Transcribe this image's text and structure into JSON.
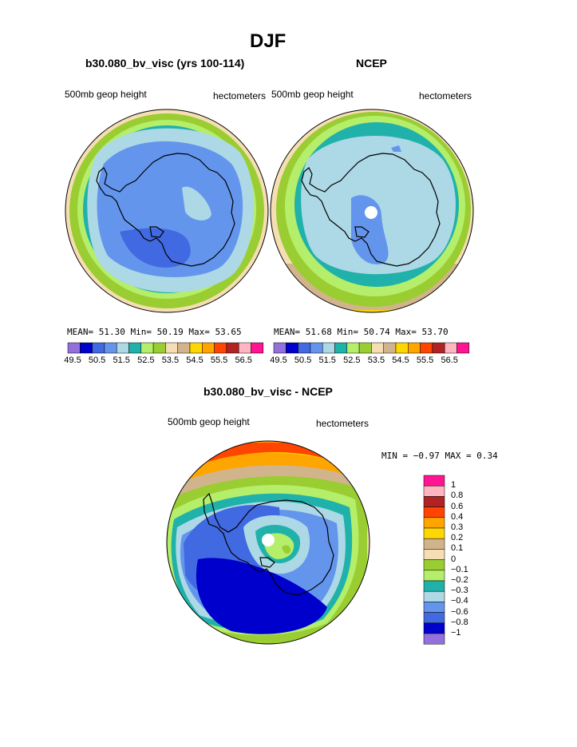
{
  "figure": {
    "title": "DJF"
  },
  "chart_data": [
    {
      "type": "polar-contour-map",
      "title": "b30.080_bv_visc (yrs 100-114)",
      "left_label": "500mb geop height",
      "right_label": "hectometers",
      "stats": {
        "mean_label": "MEAN=",
        "mean": "51.30",
        "min_label": "Min=",
        "min": "50.19",
        "max_label": "Max=",
        "max": "53.65"
      },
      "colorbar_labels": [
        "49.5",
        "50.5",
        "51.5",
        "52.5",
        "53.5",
        "54.5",
        "55.5",
        "56.5"
      ],
      "colors": [
        "#9370db",
        "#0000cd",
        "#4169e1",
        "#6495ed",
        "#add8e6",
        "#20b2aa",
        "#b4ee6a",
        "#9acd32",
        "#f5deb3",
        "#d2b48c",
        "#ffd700",
        "#ffa500",
        "#ff4500",
        "#b22222",
        "#ffb6c1",
        "#ff1493"
      ],
      "field_levels": [
        51.2,
        51.2,
        51.8,
        52.5,
        53.0,
        53.4,
        53.6
      ]
    },
    {
      "type": "polar-contour-map",
      "title": "NCEP",
      "left_label": "500mb geop height",
      "right_label": "hectometers",
      "stats": {
        "mean_label": "MEAN=",
        "mean": "51.68",
        "min_label": "Min=",
        "min": "50.74",
        "max_label": "Max=",
        "max": "53.70"
      },
      "colorbar_labels": [
        "49.5",
        "50.5",
        "51.5",
        "52.5",
        "53.5",
        "54.5",
        "55.5",
        "56.5"
      ],
      "colors": [
        "#9370db",
        "#0000cd",
        "#4169e1",
        "#6495ed",
        "#add8e6",
        "#20b2aa",
        "#b4ee6a",
        "#9acd32",
        "#f5deb3",
        "#d2b48c",
        "#ffd700",
        "#ffa500",
        "#ff4500",
        "#b22222",
        "#ffb6c1",
        "#ff1493"
      ],
      "field_levels": [
        51.6,
        51.8,
        52.2,
        52.7,
        53.1,
        53.4,
        53.7
      ]
    },
    {
      "type": "polar-contour-map",
      "title": "b30.080_bv_visc - NCEP",
      "left_label": "500mb geop height",
      "right_label": "hectometers",
      "stats": {
        "min_label": "MIN =",
        "min": "−0.97",
        "max_label": "MAX =",
        "max": "0.34"
      },
      "colorbar_labels": [
        "1",
        "0.8",
        "0.6",
        "0.4",
        "0.3",
        "0.2",
        "0.1",
        "0",
        "−0.1",
        "−0.2",
        "−0.3",
        "−0.4",
        "−0.6",
        "−0.8",
        "−1"
      ],
      "colors": [
        "#ff1493",
        "#ffb6c1",
        "#b22222",
        "#ff4500",
        "#ffa500",
        "#ffd700",
        "#d2b48c",
        "#f5deb3",
        "#9acd32",
        "#b4ee6a",
        "#20b2aa",
        "#add8e6",
        "#6495ed",
        "#4169e1",
        "#0000cd",
        "#9370db"
      ]
    }
  ]
}
